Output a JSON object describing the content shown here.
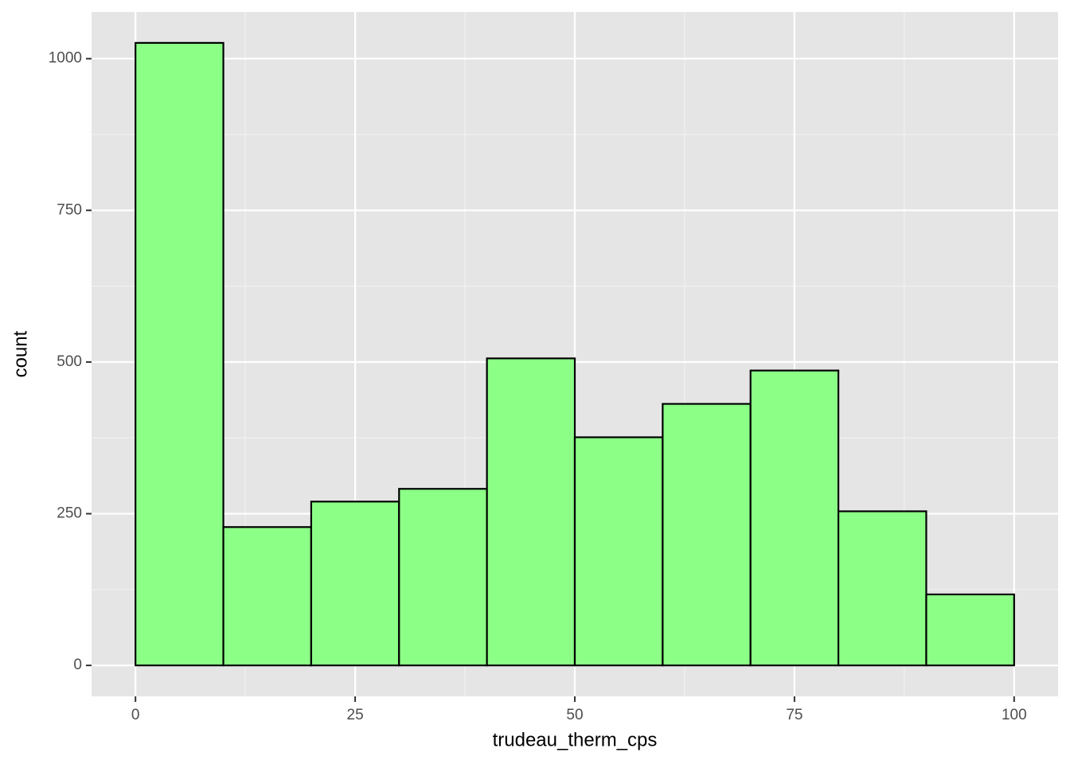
{
  "chart_data": {
    "type": "histogram",
    "x_label": "trudeau_therm_cps",
    "y_label": "count",
    "bins": [
      0,
      10,
      20,
      30,
      40,
      50,
      60,
      70,
      80,
      90,
      100
    ],
    "values": [
      1026,
      228,
      270,
      291,
      506,
      376,
      431,
      486,
      254,
      117
    ],
    "color": "#8cff87",
    "edge_color": "#000000",
    "xlim": [
      -5,
      105
    ],
    "xticks": [
      0,
      25,
      50,
      75,
      100
    ],
    "ylim": [
      -51,
      1077
    ],
    "yticks": [
      0,
      250,
      500,
      750,
      1000
    ],
    "grid": true
  }
}
